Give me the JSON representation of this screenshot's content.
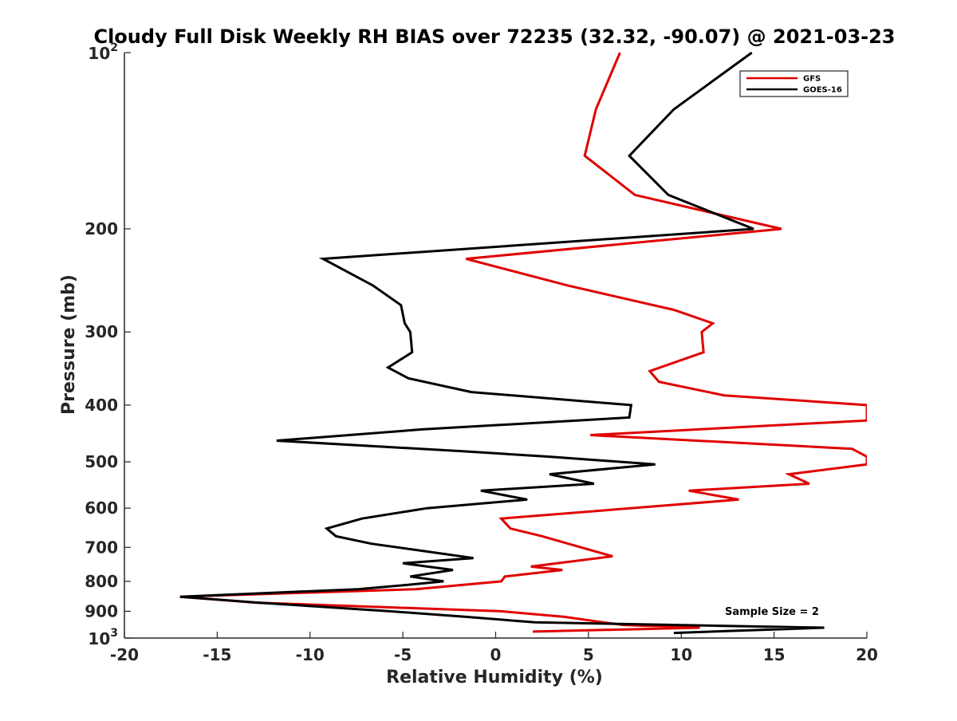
{
  "chart_data": {
    "type": "line",
    "title": "Cloudy Full Disk Weekly RH BIAS over 72235 (32.32, -90.07) @ 2021-03-23",
    "xlabel": "Relative Humidity (%)",
    "ylabel": "Pressure (mb)",
    "xlim": [
      -20,
      20
    ],
    "ylim": [
      100,
      1000
    ],
    "yscale": "log",
    "y_reversed": true,
    "x_ticks": [
      -20,
      -15,
      -10,
      -5,
      0,
      5,
      10,
      15,
      20
    ],
    "x_tick_labels": [
      "-20",
      "-15",
      "-10",
      "-5",
      "0",
      "5",
      "10",
      "15",
      "20"
    ],
    "y_ticks": [
      {
        "value": 100,
        "base": "10",
        "exponent": "2",
        "label": ""
      },
      {
        "value": 200,
        "label": "200"
      },
      {
        "value": 300,
        "label": "300"
      },
      {
        "value": 400,
        "label": "400"
      },
      {
        "value": 500,
        "label": "500"
      },
      {
        "value": 600,
        "label": "600"
      },
      {
        "value": 700,
        "label": "700"
      },
      {
        "value": 800,
        "label": "800"
      },
      {
        "value": 900,
        "label": "900"
      },
      {
        "value": 1000,
        "base": "10",
        "exponent": "3",
        "label": ""
      }
    ],
    "legend_position": "top-right",
    "annotation": "Sample Size = 2",
    "series": [
      {
        "name": "GFS",
        "color": "#e00000",
        "x": [
          6.7,
          5.4,
          4.8,
          7.5,
          15.4,
          -1.6,
          3.9,
          9.6,
          11.7,
          11.1,
          11.2,
          8.3,
          8.8,
          12.3,
          20,
          20,
          5.1,
          19.2,
          20,
          20,
          15.8,
          16.9,
          10.4,
          13.1,
          0.3,
          0.8,
          2.5,
          4.6,
          6.3,
          1.9,
          3.6,
          0.5,
          0.3,
          -4.3,
          -17,
          -12.9,
          0.3,
          3.7,
          5.8,
          6.9,
          11.0,
          2.0
        ],
        "y": [
          100,
          125,
          150,
          175,
          200,
          225,
          250,
          275,
          290,
          300,
          325,
          350,
          365,
          385,
          400,
          425,
          450,
          475,
          490,
          505,
          525,
          545,
          560,
          580,
          625,
          650,
          670,
          700,
          725,
          755,
          765,
          785,
          800,
          825,
          850,
          870,
          900,
          920,
          940,
          950,
          960,
          975
        ]
      },
      {
        "name": "GOES-16",
        "color": "#000000",
        "x": [
          13.8,
          9.6,
          7.2,
          9.3,
          13.9,
          -9.3,
          -6.6,
          -5.1,
          -4.9,
          -4.6,
          -4.5,
          -5.8,
          -4.7,
          -1.3,
          7.3,
          7.2,
          -3.9,
          -11.8,
          -1.6,
          2.9,
          8.6,
          2.9,
          5.3,
          -0.8,
          1.7,
          -3.7,
          -7.2,
          -9.1,
          -8.6,
          -6.7,
          -3.2,
          -1.2,
          -5.0,
          -2.3,
          -4.6,
          -2.8,
          -4.5,
          -7.4,
          -17,
          -12.8,
          -5.7,
          -1.6,
          2.1,
          17.7,
          9.6
        ],
        "y": [
          100,
          125,
          150,
          175,
          200,
          225,
          250,
          270,
          290,
          300,
          325,
          345,
          360,
          380,
          400,
          420,
          440,
          460,
          480,
          490,
          505,
          525,
          545,
          560,
          580,
          600,
          625,
          650,
          670,
          690,
          715,
          730,
          745,
          765,
          785,
          800,
          810,
          825,
          850,
          870,
          900,
          920,
          940,
          960,
          980
        ]
      }
    ]
  }
}
